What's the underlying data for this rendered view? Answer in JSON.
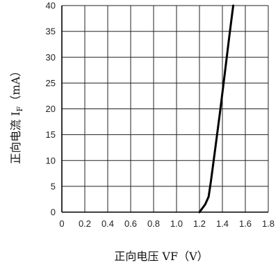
{
  "chart_data": {
    "type": "line",
    "xlabel": "正向电压 VF（V）",
    "ylabel_main": "正向电流 I",
    "ylabel_sub": "F",
    "ylabel_tail": "（mA）",
    "xlim": [
      0,
      1.8
    ],
    "ylim": [
      0,
      40
    ],
    "xticks": [
      "0",
      "0.2",
      "0.4",
      "0.6",
      "0.8",
      "1.0",
      "1.2",
      "1.4",
      "1.6",
      "1.8"
    ],
    "yticks": [
      "0",
      "5",
      "10",
      "15",
      "20",
      "25",
      "30",
      "35",
      "40"
    ],
    "grid": true,
    "series": [
      {
        "x": [
          1.2,
          1.22,
          1.25,
          1.28,
          1.3,
          1.34,
          1.38,
          1.42,
          1.46,
          1.5
        ],
        "y": [
          0,
          0.6,
          1.5,
          3,
          6,
          12.7,
          19.5,
          26.7,
          34,
          41
        ]
      }
    ]
  }
}
